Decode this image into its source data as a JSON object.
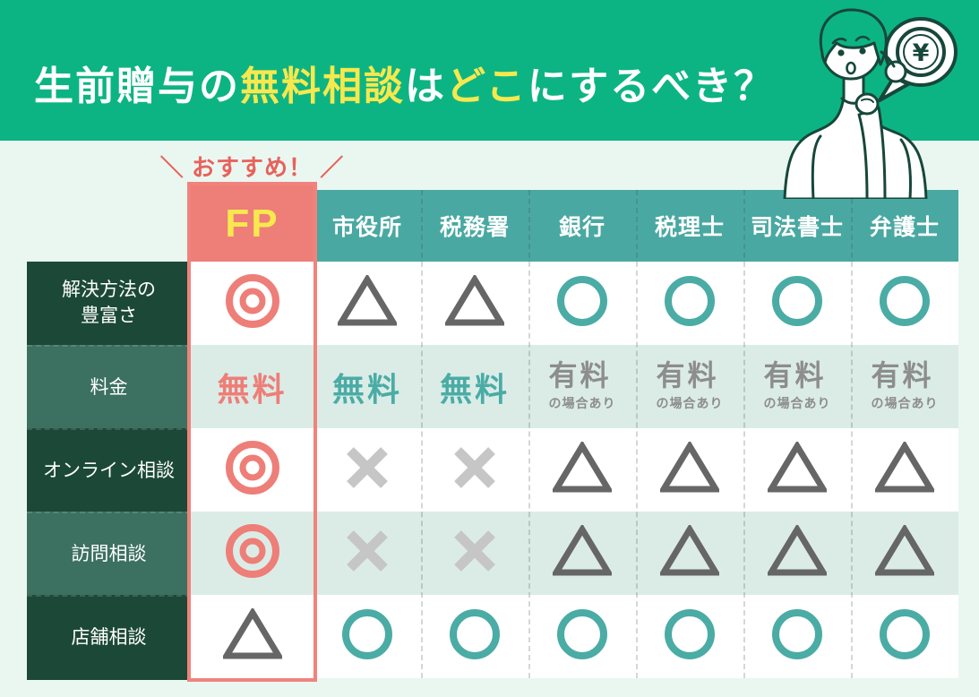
{
  "colors": {
    "header_green": "#0cb483",
    "page_bg": "#eaf7f1",
    "title_yellow": "#f7e84e",
    "recommend_red": "#e8625b",
    "accent_red": "#ee7e78",
    "fp_frame": "#f0837d",
    "teal": "#4aa8a2",
    "dark_green": "#1c4937",
    "mid_green": "#3c7060",
    "row_mint": "#dbece7",
    "circle_teal": "#4aaca5",
    "triangle_gray": "#666666",
    "cross_gray": "#c6c6c6",
    "text_gray": "#8d8d8d",
    "outline_green": "#17473a"
  },
  "header": {
    "title_segments": [
      {
        "text": "生前贈与の",
        "color": "white"
      },
      {
        "text": "無料相談",
        "color": "yellow"
      },
      {
        "text": "は",
        "color": "white"
      },
      {
        "text": "どこ",
        "color": "yellow"
      },
      {
        "text": "にするべき？",
        "color": "white"
      }
    ]
  },
  "recommend_label": "＼ おすすめ！ ／",
  "illustration": {
    "person_icon": "thinking-woman-icon",
    "coin_symbol": "¥"
  },
  "table": {
    "columns": [
      {
        "id": "fp",
        "label": "FP",
        "highlight": true
      },
      {
        "id": "city-hall",
        "label": "市役所"
      },
      {
        "id": "tax-office",
        "label": "税務署"
      },
      {
        "id": "bank",
        "label": "銀行"
      },
      {
        "id": "tax-accountant",
        "label": "税理士"
      },
      {
        "id": "judicial-scrivener",
        "label": "司法書士"
      },
      {
        "id": "lawyer",
        "label": "弁護士"
      }
    ],
    "rows": [
      {
        "label_lines": [
          "解決方法の",
          "豊富さ"
        ],
        "cells": [
          "double_circle",
          "triangle",
          "triangle",
          "circle",
          "circle",
          "circle",
          "circle"
        ]
      },
      {
        "label_lines": [
          "料金"
        ],
        "cells": [
          "free_red",
          "free_teal",
          "free_teal",
          "paid",
          "paid",
          "paid",
          "paid"
        ]
      },
      {
        "label_lines": [
          "オンライン相談"
        ],
        "cells": [
          "double_circle",
          "cross",
          "cross",
          "triangle",
          "triangle",
          "triangle",
          "triangle"
        ]
      },
      {
        "label_lines": [
          "訪問相談"
        ],
        "cells": [
          "double_circle",
          "cross",
          "cross",
          "triangle",
          "triangle",
          "triangle",
          "triangle"
        ]
      },
      {
        "label_lines": [
          "店舗相談"
        ],
        "cells": [
          "triangle",
          "circle",
          "circle",
          "circle",
          "circle",
          "circle",
          "circle"
        ]
      }
    ],
    "texts": {
      "free": "無料",
      "paid_main": "有料",
      "paid_sub": "の場合あり"
    }
  },
  "chart_data": {
    "type": "table",
    "title": "生前贈与の無料相談はどこにするべき？",
    "highlight_column": "FP",
    "highlight_note": "＼ おすすめ！ ／",
    "columns": [
      "FP",
      "市役所",
      "税務署",
      "銀行",
      "税理士",
      "司法書士",
      "弁護士"
    ],
    "row_labels": [
      "解決方法の豊富さ",
      "料金",
      "オンライン相談",
      "訪問相談",
      "店舗相談"
    ],
    "rows": [
      [
        "◎",
        "△",
        "△",
        "○",
        "○",
        "○",
        "○"
      ],
      [
        "無料",
        "無料",
        "無料",
        "有料の場合あり",
        "有料の場合あり",
        "有料の場合あり",
        "有料の場合あり"
      ],
      [
        "◎",
        "×",
        "×",
        "△",
        "△",
        "△",
        "△"
      ],
      [
        "◎",
        "×",
        "×",
        "△",
        "△",
        "△",
        "△"
      ],
      [
        "△",
        "○",
        "○",
        "○",
        "○",
        "○",
        "○"
      ]
    ]
  }
}
